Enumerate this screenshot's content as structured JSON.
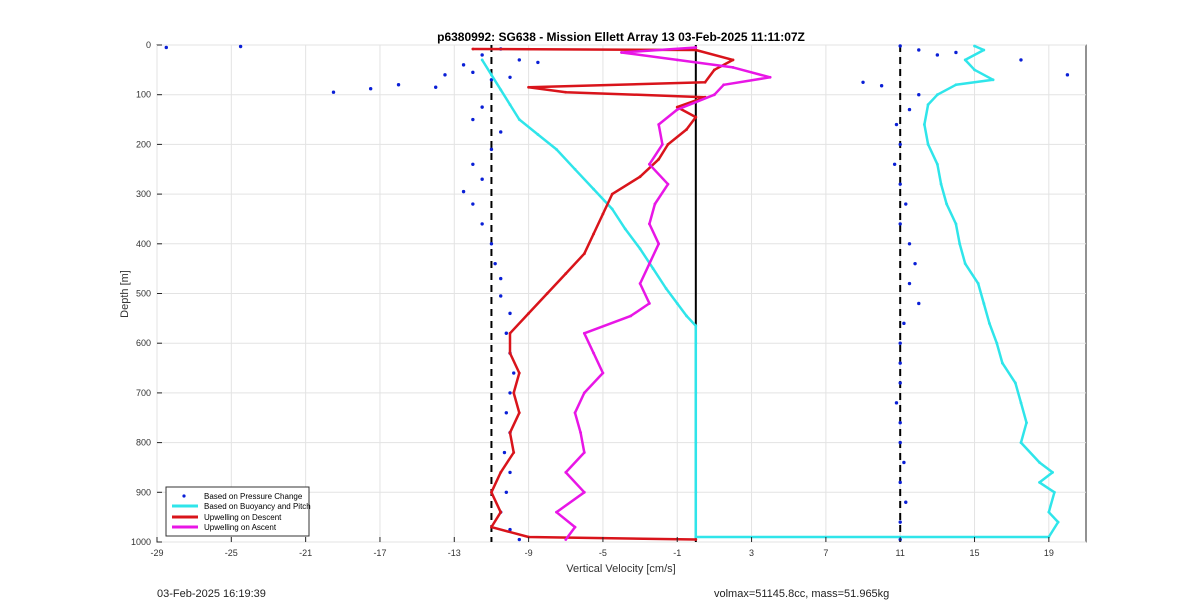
{
  "footer": {
    "timestamp": "03-Feb-2025 16:19:39",
    "info": "volmax=51145.8cc, mass=51.965kg"
  },
  "chart_data": {
    "type": "line",
    "title": "p6380992: SG638 - Mission Ellett Array 13 03-Feb-2025 11:11:07Z",
    "xlabel": "Vertical Velocity [cm/s]",
    "ylabel": "Depth [m]",
    "xlim": [
      -29,
      21
    ],
    "ylim": [
      0,
      1000
    ],
    "y_reversed": true,
    "grid": true,
    "xticks": [
      -29,
      -25,
      -21,
      -17,
      -13,
      -9,
      -5,
      -1,
      3,
      7,
      11,
      15,
      19
    ],
    "yticks": [
      0,
      100,
      200,
      300,
      400,
      500,
      600,
      700,
      800,
      900,
      1000
    ],
    "legend_position": "bottom-left",
    "vertical_lines": [
      {
        "x": -11,
        "style": "dashed",
        "color": "#000000"
      },
      {
        "x": 0,
        "style": "solid",
        "color": "#000000"
      },
      {
        "x": 11,
        "style": "dashed",
        "color": "#000000"
      }
    ],
    "series": [
      {
        "name": "Based on Pressure Change",
        "color": "#0a1fd6",
        "style": "dots",
        "points": [
          [
            -28.5,
            5
          ],
          [
            -24.5,
            3
          ],
          [
            -17.5,
            88
          ],
          [
            -19.5,
            95
          ],
          [
            -16,
            80
          ],
          [
            -14,
            85
          ],
          [
            -13.5,
            60
          ],
          [
            -12.5,
            40
          ],
          [
            -11.5,
            20
          ],
          [
            -10.5,
            8
          ],
          [
            -12,
            55
          ],
          [
            -11,
            70
          ],
          [
            -9.5,
            30
          ],
          [
            -8.5,
            35
          ],
          [
            -10,
            65
          ],
          [
            -11.5,
            125
          ],
          [
            -12,
            150
          ],
          [
            -10.5,
            175
          ],
          [
            -11,
            210
          ],
          [
            -12,
            240
          ],
          [
            -11.5,
            270
          ],
          [
            -12.5,
            295
          ],
          [
            -12,
            320
          ],
          [
            -11.5,
            360
          ],
          [
            -11,
            400
          ],
          [
            -10.8,
            440
          ],
          [
            -10.5,
            470
          ],
          [
            -10.5,
            505
          ],
          [
            -10,
            540
          ],
          [
            -10.2,
            580
          ],
          [
            -10,
            620
          ],
          [
            -9.8,
            660
          ],
          [
            -10,
            700
          ],
          [
            -10.2,
            740
          ],
          [
            -10,
            780
          ],
          [
            -10.3,
            820
          ],
          [
            -10,
            860
          ],
          [
            -10.2,
            900
          ],
          [
            -10.5,
            940
          ],
          [
            -10,
            975
          ],
          [
            -9.5,
            995
          ],
          [
            11,
            2
          ],
          [
            12,
            10
          ],
          [
            13,
            20
          ],
          [
            14,
            15
          ],
          [
            17.5,
            30
          ],
          [
            20,
            60
          ],
          [
            9,
            75
          ],
          [
            10,
            82
          ],
          [
            12,
            100
          ],
          [
            11.5,
            130
          ],
          [
            10.8,
            160
          ],
          [
            11,
            200
          ],
          [
            10.7,
            240
          ],
          [
            11,
            280
          ],
          [
            11.3,
            320
          ],
          [
            11,
            360
          ],
          [
            11.5,
            400
          ],
          [
            11.8,
            440
          ],
          [
            11.5,
            480
          ],
          [
            12,
            520
          ],
          [
            11.2,
            560
          ],
          [
            11,
            600
          ],
          [
            11,
            640
          ],
          [
            11,
            680
          ],
          [
            10.8,
            720
          ],
          [
            11,
            760
          ],
          [
            11,
            800
          ],
          [
            11.2,
            840
          ],
          [
            11,
            880
          ],
          [
            11.3,
            920
          ],
          [
            11,
            960
          ],
          [
            11,
            995
          ]
        ]
      },
      {
        "name": "Based on Buoyancy and Pitch",
        "color": "#2fe5ea",
        "style": "line",
        "points": [
          [
            -11.5,
            30
          ],
          [
            -11,
            60
          ],
          [
            -10.5,
            90
          ],
          [
            -10,
            120
          ],
          [
            -9.5,
            150
          ],
          [
            -8.5,
            180
          ],
          [
            -7.5,
            210
          ],
          [
            -6.5,
            250
          ],
          [
            -5.5,
            290
          ],
          [
            -4.5,
            330
          ],
          [
            -3.8,
            370
          ],
          [
            -3,
            410
          ],
          [
            -2.3,
            450
          ],
          [
            -1.6,
            490
          ],
          [
            -1,
            520
          ],
          [
            -0.5,
            545
          ],
          [
            0,
            565
          ],
          [
            0,
            600
          ],
          [
            0,
            700
          ],
          [
            0,
            800
          ],
          [
            0,
            900
          ],
          [
            0,
            990
          ],
          [
            19,
            990
          ],
          [
            19.5,
            960
          ],
          [
            19,
            940
          ],
          [
            19.3,
            900
          ],
          [
            18.5,
            880
          ],
          [
            19.2,
            860
          ],
          [
            18.5,
            840
          ],
          [
            17.5,
            800
          ],
          [
            17.8,
            760
          ],
          [
            17.5,
            720
          ],
          [
            17.2,
            680
          ],
          [
            16.5,
            640
          ],
          [
            16.2,
            600
          ],
          [
            15.8,
            560
          ],
          [
            15.5,
            520
          ],
          [
            15.2,
            480
          ],
          [
            14.5,
            440
          ],
          [
            14.2,
            400
          ],
          [
            14,
            360
          ],
          [
            13.5,
            320
          ],
          [
            13.2,
            280
          ],
          [
            13,
            240
          ],
          [
            12.5,
            200
          ],
          [
            12.3,
            160
          ],
          [
            12.5,
            120
          ],
          [
            13,
            100
          ],
          [
            14,
            80
          ],
          [
            16,
            70
          ],
          [
            15,
            50
          ],
          [
            14.5,
            30
          ],
          [
            15.5,
            10
          ],
          [
            15,
            2
          ]
        ]
      },
      {
        "name": "Upwelling on Descent",
        "color": "#d9141b",
        "style": "line",
        "points": [
          [
            -12,
            8
          ],
          [
            0,
            10
          ],
          [
            2,
            30
          ],
          [
            1,
            50
          ],
          [
            0.5,
            75
          ],
          [
            -9,
            85
          ],
          [
            -7,
            95
          ],
          [
            0.5,
            105
          ],
          [
            -1,
            125
          ],
          [
            0,
            145
          ],
          [
            -0.5,
            170
          ],
          [
            -1.5,
            200
          ],
          [
            -2,
            230
          ],
          [
            -3,
            265
          ],
          [
            -4.5,
            300
          ],
          [
            -5,
            340
          ],
          [
            -5.5,
            380
          ],
          [
            -6,
            420
          ],
          [
            -7,
            460
          ],
          [
            -8,
            500
          ],
          [
            -9,
            540
          ],
          [
            -10,
            580
          ],
          [
            -10,
            620
          ],
          [
            -9.5,
            660
          ],
          [
            -9.8,
            700
          ],
          [
            -9.5,
            740
          ],
          [
            -10,
            780
          ],
          [
            -9.8,
            820
          ],
          [
            -10.5,
            860
          ],
          [
            -11,
            900
          ],
          [
            -10.5,
            940
          ],
          [
            -11,
            970
          ],
          [
            -9,
            990
          ],
          [
            0,
            995
          ]
        ]
      },
      {
        "name": "Upwelling on Ascent",
        "color": "#e816e6",
        "style": "line",
        "points": [
          [
            -7,
            995
          ],
          [
            -6.5,
            970
          ],
          [
            -7.5,
            940
          ],
          [
            -6,
            900
          ],
          [
            -7,
            860
          ],
          [
            -6,
            820
          ],
          [
            -6.2,
            780
          ],
          [
            -6.5,
            740
          ],
          [
            -6,
            700
          ],
          [
            -5,
            660
          ],
          [
            -5.5,
            620
          ],
          [
            -6,
            580
          ],
          [
            -3.5,
            545
          ],
          [
            -2.5,
            520
          ],
          [
            -3,
            480
          ],
          [
            -2.5,
            440
          ],
          [
            -2,
            400
          ],
          [
            -2.5,
            360
          ],
          [
            -2.2,
            320
          ],
          [
            -1.5,
            280
          ],
          [
            -2.5,
            240
          ],
          [
            -1.8,
            200
          ],
          [
            -2,
            160
          ],
          [
            -1,
            130
          ],
          [
            1,
            100
          ],
          [
            1.5,
            80
          ],
          [
            4,
            65
          ],
          [
            2,
            45
          ],
          [
            -1,
            30
          ],
          [
            -4,
            15
          ],
          [
            0,
            5
          ]
        ]
      }
    ]
  }
}
